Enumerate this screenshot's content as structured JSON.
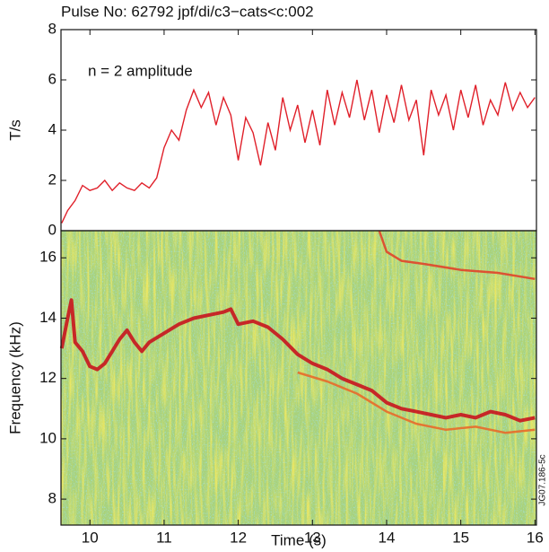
{
  "chart_data": [
    {
      "type": "line",
      "title": "Pulse No: 62792 jpf/di/c3−cats<c:002",
      "annotation": "n = 2 amplitude",
      "y_label": "T/s",
      "color": "#e0202a",
      "x": [
        9.62,
        9.7,
        9.8,
        9.9,
        10.0,
        10.1,
        10.2,
        10.3,
        10.4,
        10.5,
        10.6,
        10.7,
        10.8,
        10.9,
        11.0,
        11.1,
        11.2,
        11.3,
        11.4,
        11.5,
        11.6,
        11.7,
        11.8,
        11.9,
        12.0,
        12.1,
        12.2,
        12.3,
        12.4,
        12.5,
        12.6,
        12.7,
        12.8,
        12.9,
        13.0,
        13.1,
        13.2,
        13.3,
        13.4,
        13.5,
        13.6,
        13.7,
        13.8,
        13.9,
        14.0,
        14.1,
        14.2,
        14.3,
        14.4,
        14.5,
        14.6,
        14.7,
        14.8,
        14.9,
        15.0,
        15.1,
        15.2,
        15.3,
        15.4,
        15.5,
        15.6,
        15.7,
        15.8,
        15.9,
        16.0
      ],
      "values": [
        0.3,
        0.8,
        1.2,
        1.8,
        1.6,
        1.7,
        2.0,
        1.6,
        1.9,
        1.7,
        1.6,
        1.9,
        1.7,
        2.1,
        3.3,
        4.0,
        3.6,
        4.8,
        5.6,
        4.9,
        5.5,
        4.2,
        5.3,
        4.6,
        2.8,
        4.5,
        3.9,
        2.6,
        4.3,
        3.2,
        5.3,
        4.0,
        5.0,
        3.5,
        4.8,
        3.4,
        5.6,
        4.2,
        5.5,
        4.5,
        6.0,
        4.4,
        5.6,
        3.9,
        5.4,
        4.3,
        5.8,
        4.4,
        5.2,
        3.0,
        5.6,
        4.6,
        5.4,
        4.0,
        5.6,
        4.5,
        5.8,
        4.2,
        5.2,
        4.6,
        5.9,
        4.8,
        5.5,
        4.9,
        5.3
      ],
      "xlim": [
        9.61,
        16.02
      ],
      "ylim": [
        0,
        8
      ],
      "yticks": [
        0,
        2,
        4,
        6,
        8
      ]
    },
    {
      "type": "spectrogram",
      "x_label": "Time (s)",
      "y_label": "Frequency (kHz)",
      "watermark": "JG07.186-5c",
      "series": [
        {
          "color": "#c8141e",
          "x": [
            9.62,
            9.7,
            9.75,
            9.8,
            9.9,
            10.0,
            10.1,
            10.2,
            10.3,
            10.4,
            10.5,
            10.6,
            10.7,
            10.8,
            11.0,
            11.2,
            11.4,
            11.6,
            11.8,
            11.9,
            12.0,
            12.2,
            12.4,
            12.6,
            12.8,
            13.0,
            13.2,
            13.4,
            13.6,
            13.8,
            14.0,
            14.2,
            14.4,
            14.6,
            14.8,
            15.0,
            15.2,
            15.4,
            15.6,
            15.8,
            16.0
          ],
          "values": [
            13.0,
            14.0,
            14.6,
            13.2,
            12.9,
            12.4,
            12.3,
            12.5,
            12.9,
            13.3,
            13.6,
            13.2,
            12.9,
            13.2,
            13.5,
            13.8,
            14.0,
            14.1,
            14.2,
            14.3,
            13.8,
            13.9,
            13.7,
            13.3,
            12.8,
            12.5,
            12.3,
            12.0,
            11.8,
            11.6,
            11.2,
            11.0,
            10.9,
            10.8,
            10.7,
            10.8,
            10.7,
            10.9,
            10.8,
            10.6,
            10.7
          ]
        },
        {
          "color": "#e0442a",
          "x": [
            13.9,
            14.0,
            14.2,
            14.5,
            15.0,
            15.5,
            16.0
          ],
          "values": [
            16.9,
            16.2,
            15.9,
            15.8,
            15.6,
            15.5,
            15.3
          ]
        },
        {
          "color": "#e86a2a",
          "x": [
            12.8,
            13.2,
            13.6,
            14.0,
            14.4,
            14.8,
            15.2,
            15.6,
            16.0
          ],
          "values": [
            12.2,
            11.9,
            11.5,
            10.9,
            10.5,
            10.3,
            10.4,
            10.2,
            10.3
          ]
        }
      ],
      "xlim": [
        9.61,
        16.02
      ],
      "ylim": [
        7.14,
        16.9
      ],
      "xticks": [
        10,
        11,
        12,
        13,
        14,
        15,
        16
      ],
      "yticks": [
        8,
        10,
        12,
        14,
        16
      ]
    }
  ]
}
